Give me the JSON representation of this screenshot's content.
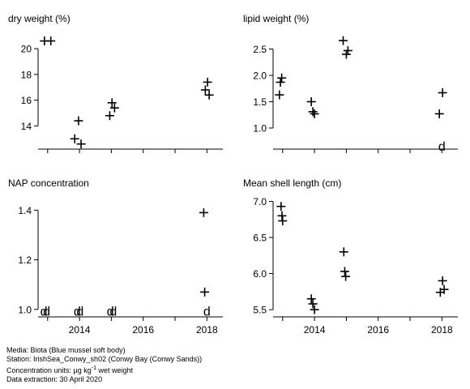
{
  "chart_data": [
    {
      "type": "scatter",
      "title": "dry weight (%)",
      "ylim": [
        12.2,
        21.2
      ],
      "yticks": [
        14,
        16,
        18,
        20
      ],
      "xlim": [
        2012.7,
        2018.5
      ],
      "xticks": [
        2014,
        2016,
        2018
      ],
      "show_xtick_labels": false,
      "points": [
        {
          "x": 2012.9,
          "y": 20.6
        },
        {
          "x": 2013.1,
          "y": 20.6
        },
        {
          "x": 2013.85,
          "y": 13.0
        },
        {
          "x": 2013.97,
          "y": 14.4
        },
        {
          "x": 2014.05,
          "y": 12.6
        },
        {
          "x": 2014.95,
          "y": 14.8
        },
        {
          "x": 2015.02,
          "y": 15.8
        },
        {
          "x": 2015.1,
          "y": 15.4
        },
        {
          "x": 2017.95,
          "y": 16.8
        },
        {
          "x": 2018.02,
          "y": 17.4
        },
        {
          "x": 2018.07,
          "y": 16.4
        }
      ],
      "detection_limit_points": []
    },
    {
      "type": "scatter",
      "title": "lipid weight (%)",
      "ylim": [
        0.6,
        2.8
      ],
      "yticks": [
        1.0,
        1.5,
        2.0,
        2.5
      ],
      "xlim": [
        2012.7,
        2018.5
      ],
      "xticks": [
        2014,
        2016,
        2018
      ],
      "show_xtick_labels": false,
      "points": [
        {
          "x": 2012.9,
          "y": 1.63
        },
        {
          "x": 2012.93,
          "y": 1.87
        },
        {
          "x": 2012.97,
          "y": 1.95
        },
        {
          "x": 2013.9,
          "y": 1.5
        },
        {
          "x": 2013.95,
          "y": 1.31
        },
        {
          "x": 2014.0,
          "y": 1.27
        },
        {
          "x": 2014.9,
          "y": 2.66
        },
        {
          "x": 2015.0,
          "y": 2.4
        },
        {
          "x": 2015.05,
          "y": 2.47
        },
        {
          "x": 2017.92,
          "y": 1.27
        },
        {
          "x": 2018.02,
          "y": 1.67
        }
      ],
      "detection_limit_points": [
        {
          "x": 2018.0,
          "y": 0.66,
          "label": "d"
        }
      ]
    },
    {
      "type": "scatter",
      "title": "NAP concentration",
      "ylim": [
        0.97,
        1.45
      ],
      "yticks": [
        1.0,
        1.2,
        1.4
      ],
      "xlim": [
        2012.7,
        2018.5
      ],
      "xticks": [
        2014,
        2016,
        2018
      ],
      "show_xtick_labels": true,
      "points": [
        {
          "x": 2017.9,
          "y": 1.39
        },
        {
          "x": 2017.93,
          "y": 1.07
        }
      ],
      "detection_limit_points": [
        {
          "x": 2012.88,
          "y": 0.995,
          "label": "d"
        },
        {
          "x": 2012.97,
          "y": 0.995,
          "label": "d"
        },
        {
          "x": 2013.93,
          "y": 0.995,
          "label": "d"
        },
        {
          "x": 2014.02,
          "y": 0.995,
          "label": "d"
        },
        {
          "x": 2014.97,
          "y": 0.995,
          "label": "d"
        },
        {
          "x": 2015.06,
          "y": 0.995,
          "label": "d"
        },
        {
          "x": 2018.0,
          "y": 0.995,
          "label": "d"
        }
      ]
    },
    {
      "type": "scatter",
      "title": "Mean shell length (cm)",
      "ylim": [
        5.4,
        7.05
      ],
      "yticks": [
        5.5,
        6.0,
        6.5,
        7.0
      ],
      "xlim": [
        2012.7,
        2018.5
      ],
      "xticks": [
        2014,
        2016,
        2018
      ],
      "show_xtick_labels": true,
      "points": [
        {
          "x": 2012.95,
          "y": 6.93
        },
        {
          "x": 2012.98,
          "y": 6.8
        },
        {
          "x": 2013.0,
          "y": 6.73
        },
        {
          "x": 2013.9,
          "y": 5.65
        },
        {
          "x": 2013.95,
          "y": 5.58
        },
        {
          "x": 2014.0,
          "y": 5.5
        },
        {
          "x": 2014.92,
          "y": 6.3
        },
        {
          "x": 2014.95,
          "y": 6.03
        },
        {
          "x": 2014.98,
          "y": 5.96
        },
        {
          "x": 2017.95,
          "y": 5.74
        },
        {
          "x": 2018.02,
          "y": 5.9
        },
        {
          "x": 2018.07,
          "y": 5.78
        }
      ],
      "detection_limit_points": []
    }
  ],
  "footer": {
    "line1": "Media: Biota (Blue mussel soft body)",
    "line2": "Station: IrishSea_Conwy_sh02 (Conwy Bay (Conwy Sands))",
    "line3_prefix": "Concentration units:  µg kg",
    "line3_sup": "-1",
    "line3_suffix": " wet weight",
    "line4": "Data extraction: 30 April 2020"
  }
}
